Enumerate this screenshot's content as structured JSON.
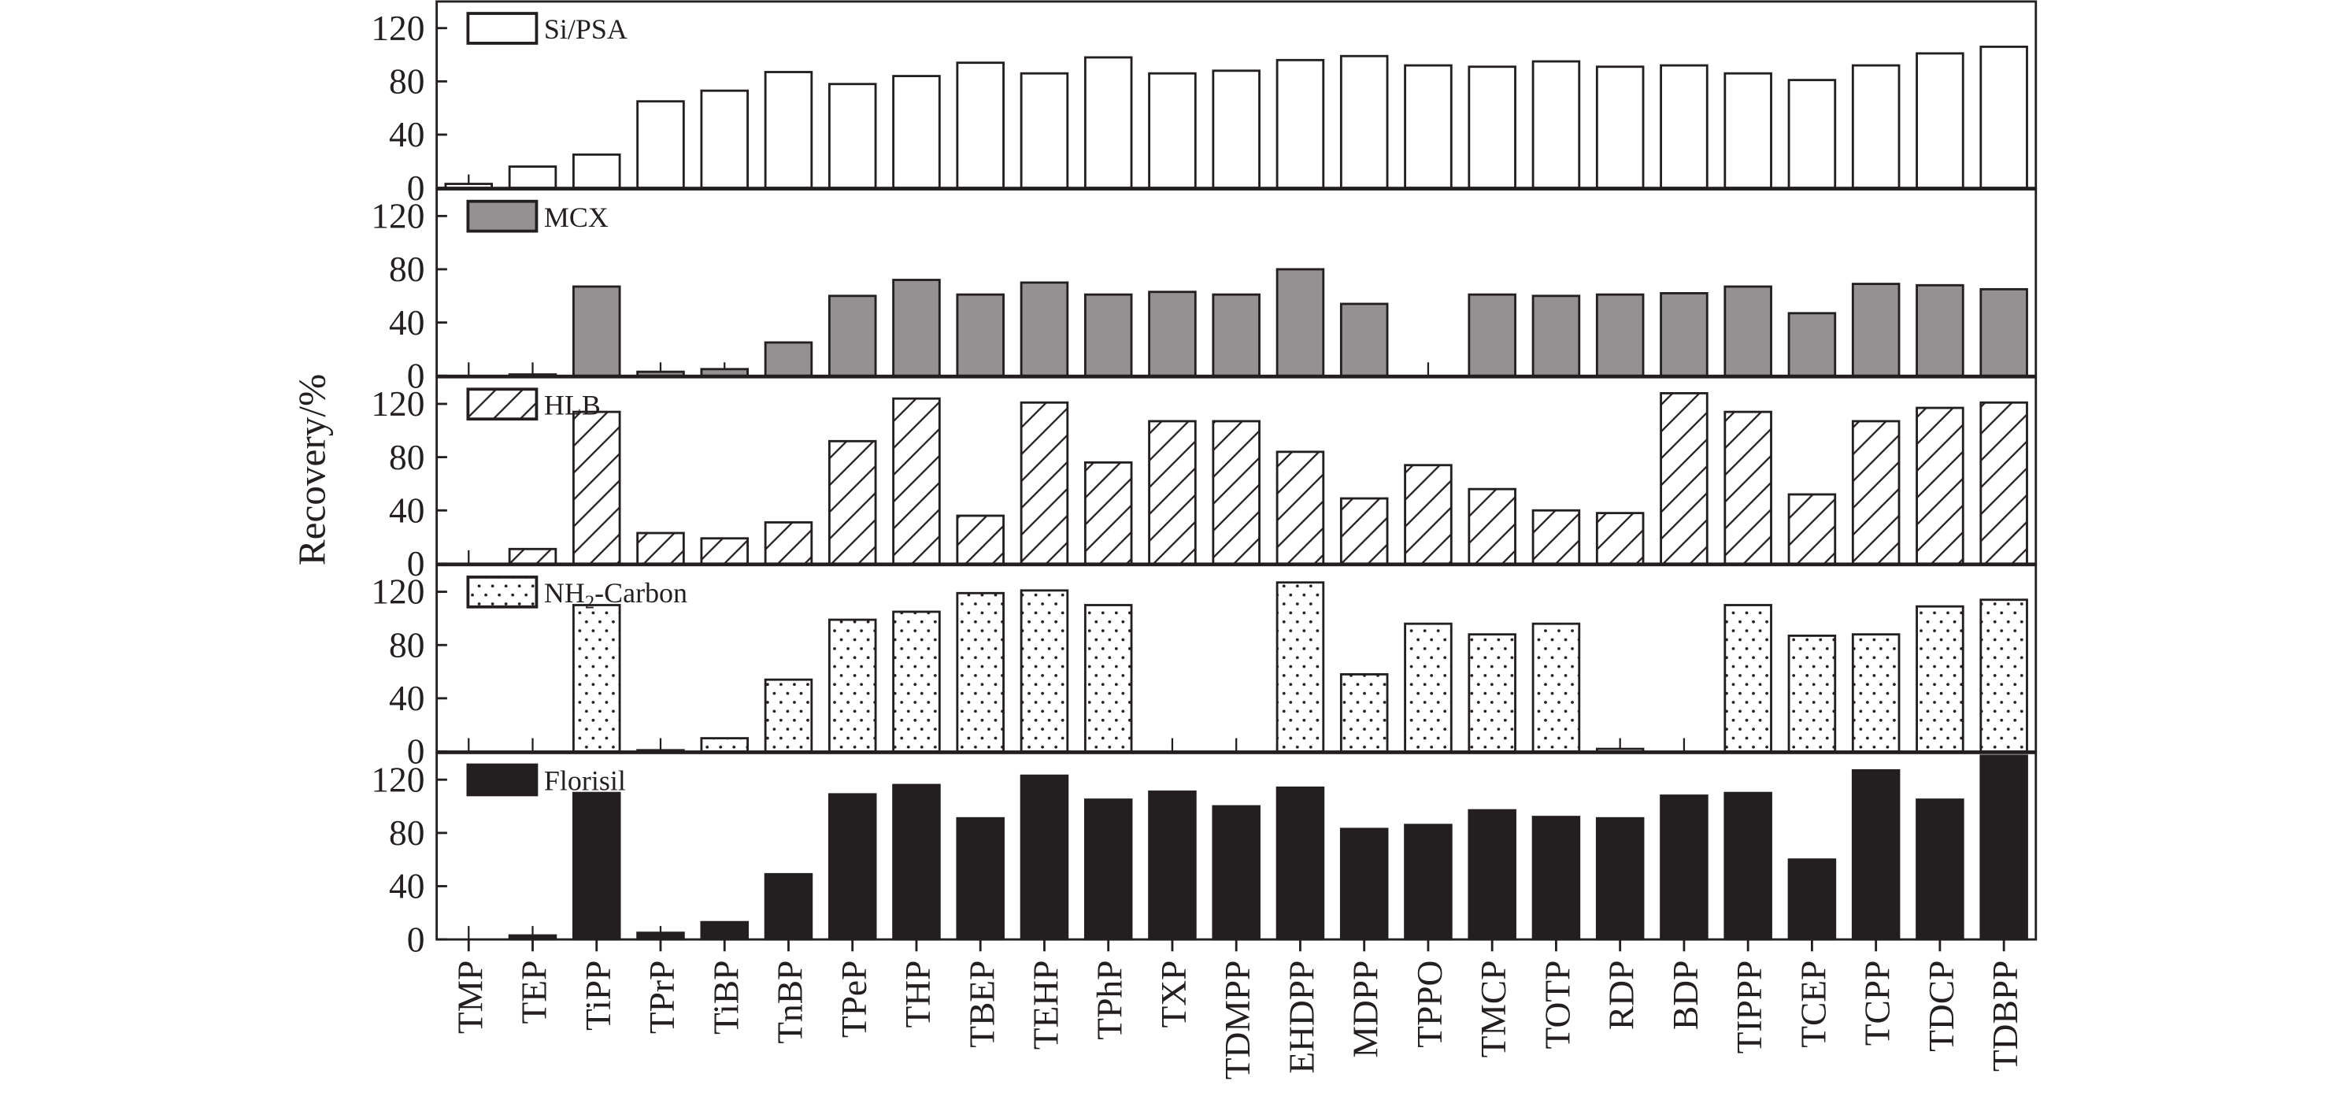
{
  "chart_data": {
    "type": "bar",
    "layout": "stacked-panels",
    "ylabel": "Recovery/%",
    "xlabel": "",
    "ylim": [
      0,
      140
    ],
    "yticks": [
      0,
      40,
      80,
      120
    ],
    "categories": [
      "TMP",
      "TEP",
      "TiPP",
      "TPrP",
      "TiBP",
      "TnBP",
      "TPeP",
      "THP",
      "TBEP",
      "TEHP",
      "TPhP",
      "TXP",
      "TDMPP",
      "EHDPP",
      "MDPP",
      "TPPO",
      "TMCP",
      "TOTP",
      "RDP",
      "BDP",
      "TIPPP",
      "TCEP",
      "TCPP",
      "TDCP",
      "TDBPP"
    ],
    "series": [
      {
        "name": "Si/PSA",
        "fill": "#ffffff",
        "pattern": "none",
        "values": [
          3,
          16,
          25,
          65,
          73,
          87,
          78,
          84,
          94,
          86,
          98,
          86,
          88,
          96,
          99,
          92,
          91,
          95,
          91,
          92,
          86,
          81,
          92,
          101,
          106
        ]
      },
      {
        "name": "MCX",
        "fill": "#939192",
        "pattern": "none",
        "values": [
          0,
          1,
          67,
          3,
          5,
          25,
          60,
          72,
          61,
          70,
          61,
          63,
          61,
          80,
          54,
          0,
          61,
          60,
          61,
          62,
          67,
          47,
          69,
          68,
          65
        ]
      },
      {
        "name": "HLB",
        "fill": "#ffffff",
        "pattern": "hatch",
        "values": [
          0,
          11,
          114,
          23,
          19,
          31,
          92,
          124,
          36,
          121,
          76,
          107,
          107,
          84,
          49,
          74,
          56,
          40,
          38,
          128,
          114,
          52,
          107,
          117,
          121
        ]
      },
      {
        "name": "NH2-Carbon",
        "legend_main": "NH",
        "legend_sub": "2",
        "legend_tail": "-Carbon",
        "fill": "#ffffff",
        "pattern": "dots",
        "values": [
          0,
          0,
          110,
          1,
          10,
          54,
          99,
          105,
          119,
          121,
          110,
          0,
          0,
          127,
          58,
          96,
          88,
          96,
          2,
          0,
          110,
          87,
          88,
          109,
          114
        ]
      },
      {
        "name": "Florisil",
        "fill": "#231f20",
        "pattern": "none",
        "values": [
          0,
          3,
          110,
          5,
          13,
          49,
          109,
          116,
          91,
          123,
          105,
          111,
          100,
          114,
          83,
          86,
          97,
          92,
          91,
          108,
          110,
          60,
          127,
          105,
          138
        ]
      }
    ]
  }
}
